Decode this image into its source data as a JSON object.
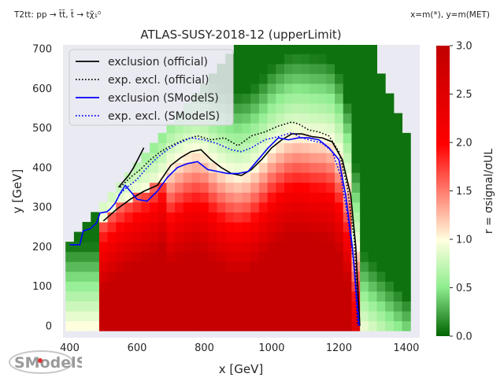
{
  "header": {
    "topology_label": "T2tt: pp → t̃t̃, t̃ → tχ̃₁⁰",
    "axes_mapping": "x=m(*), y=m(MET)"
  },
  "chart_data": {
    "type": "heatmap",
    "title": "ATLAS-SUSY-2018-12 (upperLimit)",
    "xlabel": "x [GeV]",
    "ylabel": "y [GeV]",
    "xlim": [
      380,
      1440
    ],
    "ylim": [
      -30,
      710
    ],
    "xticks": [
      400,
      600,
      800,
      1000,
      1200,
      1400
    ],
    "yticks": [
      0,
      100,
      200,
      300,
      400,
      500,
      600,
      700
    ],
    "grid": false,
    "background": "#eaeaf2",
    "colorbar": {
      "label": "r = σsignal/σUL",
      "range": [
        0.0,
        3.0
      ],
      "ticks": [
        "0.0",
        "0.5",
        "1.0",
        "1.5",
        "2.0",
        "2.5",
        "3.0"
      ],
      "colors": [
        "#006400",
        "#90ee90",
        "#ffffe0",
        "#ff0000",
        "#c00000"
      ]
    },
    "legend": {
      "placement": "top-left",
      "entries": [
        {
          "label": "exclusion (official)",
          "color": "#000000",
          "style": "solid"
        },
        {
          "label": "exp. excl. (official)",
          "color": "#000000",
          "style": "dotted"
        },
        {
          "label": "exclusion (SModelS)",
          "color": "#0000ff",
          "style": "solid"
        },
        {
          "label": "exp. excl. (SModelS)",
          "color": "#0000ff",
          "style": "dotted"
        }
      ]
    },
    "heatmap_model": {
      "cell_size": [
        25,
        25
      ],
      "x_range": [
        400,
        1400
      ],
      "y_range": [
        0,
        700
      ],
      "r_at_low_x_high_dm": 2.8,
      "r_near_boundary": 1.0,
      "r_far_outside": 0.05
    },
    "series": [
      {
        "name": "exclusion (official)",
        "color": "#000000",
        "style": "solid",
        "points": [
          [
            500,
            265
          ],
          [
            540,
            295
          ],
          [
            580,
            320
          ],
          [
            620,
            340
          ],
          [
            660,
            355
          ],
          [
            680,
            380
          ],
          [
            700,
            405
          ],
          [
            730,
            425
          ],
          [
            760,
            440
          ],
          [
            790,
            445
          ],
          [
            820,
            420
          ],
          [
            850,
            400
          ],
          [
            880,
            385
          ],
          [
            910,
            380
          ],
          [
            940,
            395
          ],
          [
            970,
            420
          ],
          [
            1000,
            450
          ],
          [
            1030,
            470
          ],
          [
            1060,
            485
          ],
          [
            1090,
            485
          ],
          [
            1120,
            478
          ],
          [
            1150,
            475
          ],
          [
            1180,
            465
          ],
          [
            1210,
            420
          ],
          [
            1235,
            330
          ],
          [
            1250,
            200
          ],
          [
            1262,
            0
          ]
        ]
      },
      {
        "name": "exclusion (official) (second segment)",
        "color": "#000000",
        "style": "solid",
        "points": [
          [
            545,
            350
          ],
          [
            560,
            365
          ],
          [
            575,
            380
          ],
          [
            590,
            400
          ],
          [
            605,
            425
          ],
          [
            620,
            450
          ]
        ]
      },
      {
        "name": "exp. excl. (official)",
        "color": "#000000",
        "style": "dotted",
        "points": [
          [
            550,
            350
          ],
          [
            580,
            375
          ],
          [
            610,
            395
          ],
          [
            640,
            420
          ],
          [
            670,
            440
          ],
          [
            700,
            455
          ],
          [
            740,
            470
          ],
          [
            780,
            480
          ],
          [
            820,
            470
          ],
          [
            860,
            475
          ],
          [
            900,
            455
          ],
          [
            940,
            480
          ],
          [
            980,
            490
          ],
          [
            1020,
            505
          ],
          [
            1060,
            515
          ],
          [
            1080,
            510
          ],
          [
            1110,
            495
          ],
          [
            1140,
            490
          ],
          [
            1170,
            480
          ],
          [
            1200,
            440
          ],
          [
            1225,
            350
          ],
          [
            1245,
            220
          ],
          [
            1258,
            0
          ]
        ]
      },
      {
        "name": "exclusion (SModelS)",
        "color": "#0000ff",
        "style": "solid",
        "points": [
          [
            400,
            205
          ],
          [
            430,
            205
          ],
          [
            440,
            240
          ],
          [
            460,
            245
          ],
          [
            480,
            260
          ],
          [
            490,
            285
          ],
          [
            510,
            288
          ],
          [
            520,
            295
          ],
          [
            535,
            310
          ],
          [
            550,
            335
          ],
          [
            565,
            355
          ],
          [
            585,
            335
          ],
          [
            600,
            320
          ],
          [
            630,
            315
          ],
          [
            660,
            340
          ],
          [
            690,
            375
          ],
          [
            720,
            400
          ],
          [
            750,
            410
          ],
          [
            780,
            415
          ],
          [
            810,
            395
          ],
          [
            840,
            390
          ],
          [
            870,
            385
          ],
          [
            900,
            385
          ],
          [
            930,
            390
          ],
          [
            960,
            420
          ],
          [
            990,
            450
          ],
          [
            1020,
            475
          ],
          [
            1050,
            470
          ],
          [
            1080,
            475
          ],
          [
            1110,
            475
          ],
          [
            1140,
            470
          ],
          [
            1170,
            450
          ],
          [
            1200,
            420
          ],
          [
            1220,
            330
          ],
          [
            1240,
            200
          ],
          [
            1260,
            0
          ]
        ]
      },
      {
        "name": "exp. excl. (SModelS)",
        "color": "#0000ff",
        "style": "dotted",
        "points": [
          [
            545,
            330
          ],
          [
            570,
            350
          ],
          [
            600,
            370
          ],
          [
            630,
            400
          ],
          [
            660,
            425
          ],
          [
            690,
            445
          ],
          [
            720,
            460
          ],
          [
            760,
            475
          ],
          [
            800,
            470
          ],
          [
            840,
            460
          ],
          [
            880,
            445
          ],
          [
            910,
            440
          ],
          [
            940,
            450
          ],
          [
            980,
            470
          ],
          [
            1020,
            478
          ],
          [
            1060,
            488
          ],
          [
            1090,
            475
          ],
          [
            1120,
            468
          ],
          [
            1150,
            462
          ],
          [
            1180,
            440
          ],
          [
            1205,
            380
          ],
          [
            1225,
            280
          ],
          [
            1245,
            150
          ],
          [
            1255,
            0
          ]
        ]
      }
    ]
  },
  "logo": {
    "text": "SModelS"
  }
}
